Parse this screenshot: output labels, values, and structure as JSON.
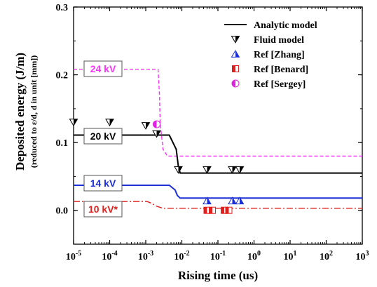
{
  "chart_data": {
    "type": "line",
    "xlabel": "Rising time (us)",
    "ylabel": "Deposited energy (J/m)",
    "ylabel_sub": "(reduced to ε/d, d in unit [mm])",
    "x_scale": "log",
    "xlim": [
      1e-05,
      1000
    ],
    "ylim": [
      -0.05,
      0.3
    ],
    "x_tick_labels": [
      {
        "base": "10",
        "exp": "-5"
      },
      {
        "base": "10",
        "exp": "-4"
      },
      {
        "base": "10",
        "exp": "-3"
      },
      {
        "base": "10",
        "exp": "-2"
      },
      {
        "base": "10",
        "exp": "-1"
      },
      {
        "base": "10",
        "exp": "0"
      },
      {
        "base": "10",
        "exp": "1"
      },
      {
        "base": "10",
        "exp": "2"
      },
      {
        "base": "10",
        "exp": "3"
      }
    ],
    "y_ticks": [
      0.0,
      0.1,
      0.2,
      0.3
    ],
    "y_tick_labels": [
      "0.0",
      "0.1",
      "0.2",
      "0.3"
    ],
    "legend": [
      {
        "label": "Analytic model",
        "marker": "line",
        "color": "#000000"
      },
      {
        "label": "Fluid model",
        "marker": "down-triangle",
        "color": "#000000"
      },
      {
        "label": "Ref [Zhang]",
        "marker": "up-triangle",
        "color": "#1a2fd6"
      },
      {
        "label": "Ref [Benard]",
        "marker": "half-square",
        "color": "#e0201c"
      },
      {
        "label": "Ref [Sergey]",
        "marker": "half-circle",
        "color": "#e020e0"
      }
    ],
    "series": [
      {
        "name": "24 kV",
        "color": "#ff33ff",
        "dash": "dash",
        "x": [
          1e-05,
          0.0022,
          0.0024,
          0.0025,
          0.003,
          0.004,
          1000
        ],
        "y": [
          0.208,
          0.208,
          0.17,
          0.13,
          0.09,
          0.08,
          0.08
        ]
      },
      {
        "name": "20 kV",
        "color": "#000000",
        "dash": "solid",
        "x": [
          1e-05,
          0.0045,
          0.007,
          0.008,
          0.009,
          1000
        ],
        "y": [
          0.111,
          0.111,
          0.09,
          0.065,
          0.055,
          0.055
        ]
      },
      {
        "name": "14 kV",
        "color": "#1a2fd6",
        "dash": "solid",
        "x": [
          1e-05,
          0.0045,
          0.0065,
          0.0075,
          0.009,
          1000
        ],
        "y": [
          0.037,
          0.037,
          0.03,
          0.022,
          0.018,
          0.018
        ]
      },
      {
        "name": "10 kV*",
        "color": "#e0201c",
        "dash": "dashdot",
        "x": [
          1e-05,
          0.0011,
          0.0015,
          0.002,
          0.003,
          1000
        ],
        "y": [
          0.013,
          0.013,
          0.01,
          0.006,
          0.003,
          0.003
        ]
      }
    ],
    "box_labels": [
      {
        "text": "24 kV",
        "color": "#ff33ff"
      },
      {
        "text": "20 kV",
        "color": "#000000"
      },
      {
        "text": "14 kV",
        "color": "#1a2fd6"
      },
      {
        "text": "10 kV*",
        "color": "#e0201c"
      }
    ],
    "points": {
      "fluid_model": {
        "x": [
          1e-05,
          0.0001,
          0.001,
          0.002,
          0.008,
          0.05,
          0.25,
          0.4
        ],
        "y": [
          0.13,
          0.13,
          0.125,
          0.113,
          0.06,
          0.06,
          0.06,
          0.06
        ]
      },
      "zhang": {
        "x": [
          0.05,
          0.25,
          0.4
        ],
        "y": [
          0.014,
          0.014,
          0.014
        ]
      },
      "benard": {
        "x": [
          0.05,
          0.07,
          0.15,
          0.2
        ],
        "y": [
          0.0,
          0.0,
          0.0,
          0.0
        ]
      },
      "sergey": {
        "x": [
          0.002
        ],
        "y": [
          0.127
        ]
      }
    }
  }
}
